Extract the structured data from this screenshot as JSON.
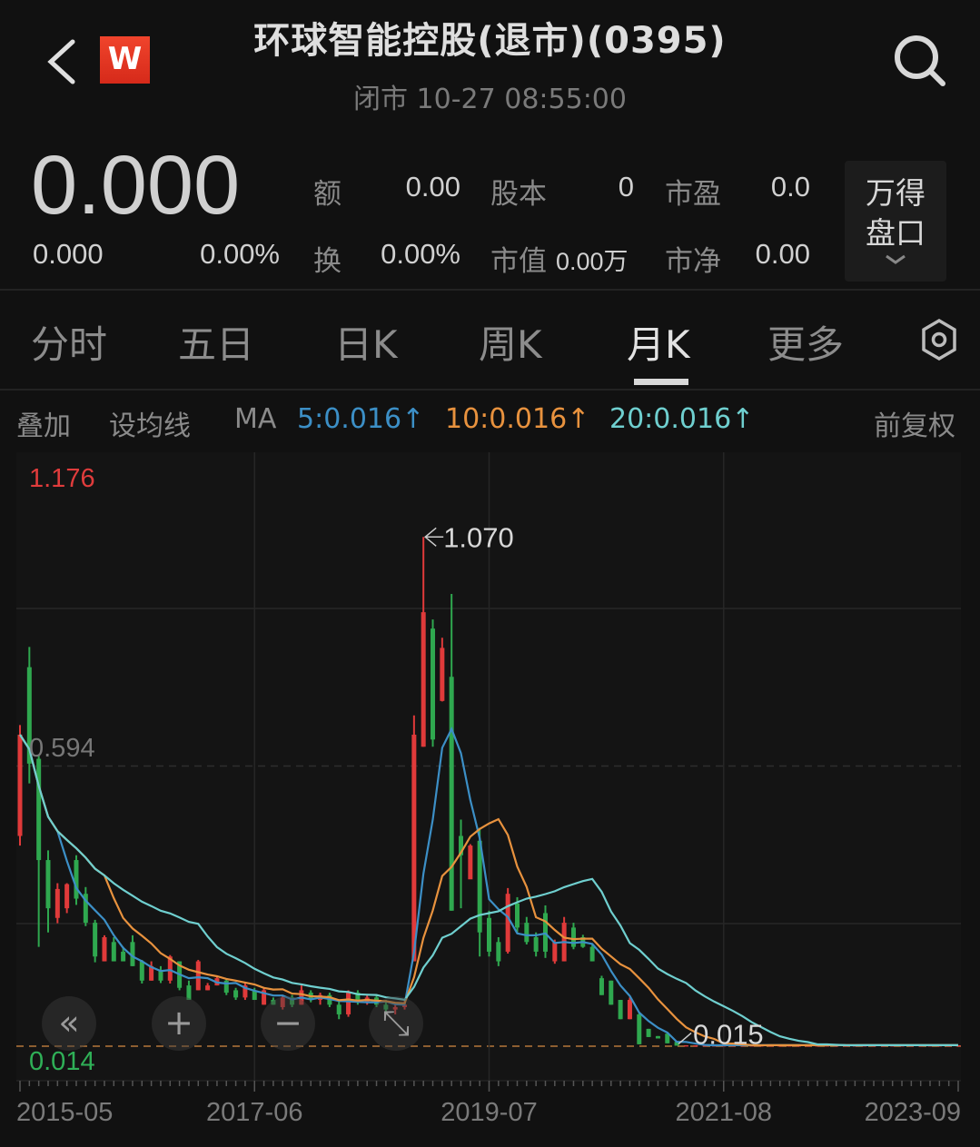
{
  "header": {
    "title": "环球智能控股(退市)(0395)",
    "subtitle": "闭市 10-27 08:55:00",
    "logo_text": "W",
    "icons": {
      "back": "chevron-left-icon",
      "search": "search-icon"
    }
  },
  "quote": {
    "price": "0.000",
    "change": "0.000",
    "change_pct": "0.00%",
    "stats": [
      {
        "label": "额",
        "value": "0.00"
      },
      {
        "label": "股本",
        "value": "0"
      },
      {
        "label": "市盈",
        "value": "0.0"
      },
      {
        "label": "换",
        "value": "0.00%"
      },
      {
        "label": "市值",
        "value": "0.00万"
      },
      {
        "label": "市净",
        "value": "0.00"
      }
    ],
    "panel_button": {
      "line1": "万得",
      "line2": "盘口",
      "icon": "chevron-down-icon"
    }
  },
  "tabs": [
    {
      "label": "分时",
      "active": false
    },
    {
      "label": "五日",
      "active": false
    },
    {
      "label": "日K",
      "active": false
    },
    {
      "label": "周K",
      "active": false
    },
    {
      "label": "月K",
      "active": true
    },
    {
      "label": "更多",
      "active": false
    }
  ],
  "settings_icon": "settings-hexagon-icon",
  "ma_bar": {
    "overlay": "叠加",
    "set_ma": "设均线",
    "ma": "MA",
    "ma5": "5:0.016↑",
    "ma10": "10:0.016↑",
    "ma20": "20:0.016↑",
    "adjust": "前复权"
  },
  "colors": {
    "up": "#e03a3a",
    "down": "#2fa84f",
    "ma5": "#3c8fc6",
    "ma10": "#e8923e",
    "ma20": "#6fcfcf"
  },
  "chart_controls": [
    {
      "name": "scroll-left",
      "icon": "double-chevron-left-icon",
      "glyph": "«"
    },
    {
      "name": "zoom-in",
      "icon": "plus-icon",
      "glyph": "+"
    },
    {
      "name": "zoom-out",
      "icon": "minus-icon",
      "glyph": "−"
    },
    {
      "name": "fullscreen",
      "icon": "expand-icon",
      "glyph": "⤡"
    }
  ],
  "chart_data": {
    "type": "candlestick",
    "interval": "monthly",
    "start": "2015-05",
    "ylim": [
      0.014,
      1.176
    ],
    "y_labels": {
      "max": "1.176",
      "mid": "0.594",
      "min": "0.014"
    },
    "annotations": {
      "high": "1.070",
      "low": "0.015"
    },
    "x_tick_labels": [
      "2015-05",
      "2017-06",
      "2019-07",
      "2021-08",
      "2023-09"
    ],
    "moving_averages": [
      5,
      10,
      20
    ],
    "ohlc": [
      [
        0.45,
        0.68,
        0.43,
        0.66
      ],
      [
        0.8,
        0.842,
        0.559,
        0.6
      ],
      [
        0.61,
        0.616,
        0.22,
        0.4
      ],
      [
        0.4,
        0.42,
        0.25,
        0.3
      ],
      [
        0.28,
        0.352,
        0.269,
        0.34
      ],
      [
        0.3,
        0.352,
        0.29,
        0.35
      ],
      [
        0.4,
        0.41,
        0.307,
        0.32
      ],
      [
        0.33,
        0.344,
        0.263,
        0.27
      ],
      [
        0.27,
        0.276,
        0.188,
        0.2
      ],
      [
        0.19,
        0.244,
        0.19,
        0.24
      ],
      [
        0.23,
        0.24,
        0.19,
        0.19
      ],
      [
        0.21,
        0.22,
        0.19,
        0.19
      ],
      [
        0.23,
        0.244,
        0.18,
        0.18
      ],
      [
        0.19,
        0.193,
        0.144,
        0.15
      ],
      [
        0.15,
        0.19,
        0.15,
        0.18
      ],
      [
        0.17,
        0.18,
        0.145,
        0.15
      ],
      [
        0.15,
        0.203,
        0.144,
        0.2
      ],
      [
        0.19,
        0.19,
        0.13,
        0.135
      ],
      [
        0.14,
        0.15,
        0.115,
        0.11
      ],
      [
        0.13,
        0.193,
        0.13,
        0.19
      ],
      [
        0.13,
        0.145,
        0.13,
        0.14
      ],
      [
        0.14,
        0.16,
        0.14,
        0.155
      ],
      [
        0.15,
        0.155,
        0.12,
        0.125
      ],
      [
        0.13,
        0.135,
        0.11,
        0.115
      ],
      [
        0.115,
        0.145,
        0.11,
        0.14
      ],
      [
        0.13,
        0.135,
        0.11,
        0.11
      ],
      [
        0.1,
        0.135,
        0.1,
        0.13
      ],
      [
        0.11,
        0.115,
        0.1,
        0.1
      ],
      [
        0.095,
        0.12,
        0.09,
        0.115
      ],
      [
        0.115,
        0.12,
        0.095,
        0.1
      ],
      [
        0.1,
        0.14,
        0.1,
        0.13
      ],
      [
        0.125,
        0.13,
        0.105,
        0.11
      ],
      [
        0.11,
        0.125,
        0.1,
        0.12
      ],
      [
        0.12,
        0.125,
        0.095,
        0.1
      ],
      [
        0.1,
        0.11,
        0.07,
        0.08
      ],
      [
        0.08,
        0.13,
        0.075,
        0.125
      ],
      [
        0.125,
        0.13,
        0.1,
        0.105
      ],
      [
        0.105,
        0.12,
        0.1,
        0.115
      ],
      [
        0.115,
        0.12,
        0.095,
        0.1
      ],
      [
        0.1,
        0.11,
        0.085,
        0.09
      ],
      [
        0.09,
        0.1,
        0.08,
        0.095
      ],
      [
        0.095,
        0.11,
        0.09,
        0.1
      ],
      [
        0.19,
        0.7,
        0.19,
        0.66
      ],
      [
        0.635,
        1.07,
        0.635,
        0.914
      ],
      [
        0.88,
        0.899,
        0.635,
        0.65
      ],
      [
        0.73,
        0.861,
        0.729,
        0.84
      ],
      [
        0.78,
        0.952,
        0.295,
        0.295
      ],
      [
        0.45,
        0.484,
        0.3,
        0.41
      ],
      [
        0.36,
        0.433,
        0.361,
        0.43
      ],
      [
        0.44,
        0.467,
        0.2,
        0.25
      ],
      [
        0.28,
        0.295,
        0.2,
        0.21
      ],
      [
        0.23,
        0.24,
        0.18,
        0.19
      ],
      [
        0.21,
        0.342,
        0.206,
        0.33
      ],
      [
        0.31,
        0.323,
        0.25,
        0.26
      ],
      [
        0.27,
        0.282,
        0.225,
        0.23
      ],
      [
        0.24,
        0.25,
        0.2,
        0.21
      ],
      [
        0.29,
        0.306,
        0.197,
        0.21
      ],
      [
        0.19,
        0.235,
        0.185,
        0.23
      ],
      [
        0.19,
        0.282,
        0.19,
        0.27
      ],
      [
        0.26,
        0.27,
        0.215,
        0.22
      ],
      [
        0.24,
        0.245,
        0.218,
        0.22
      ],
      [
        0.22,
        0.225,
        0.19,
        0.19
      ],
      [
        0.155,
        0.16,
        0.12,
        0.12
      ],
      [
        0.15,
        0.15,
        0.1,
        0.1
      ],
      [
        0.11,
        0.11,
        0.07,
        0.07
      ],
      [
        0.07,
        0.115,
        0.07,
        0.11
      ],
      [
        0.08,
        0.085,
        0.018,
        0.018
      ],
      [
        0.05,
        0.05,
        0.033,
        0.033
      ],
      [
        0.035,
        0.035,
        0.03,
        0.03
      ],
      [
        0.04,
        0.04,
        0.02,
        0.02
      ],
      [
        0.023,
        0.023,
        0.015,
        0.015
      ],
      [
        0.016,
        0.016,
        0.016,
        0.016
      ],
      [
        0.016,
        0.016,
        0.016,
        0.016
      ],
      [
        0.016,
        0.016,
        0.016,
        0.016
      ],
      [
        0.016,
        0.016,
        0.016,
        0.016
      ],
      [
        0.016,
        0.016,
        0.016,
        0.016
      ],
      [
        0.016,
        0.016,
        0.016,
        0.016
      ],
      [
        0.016,
        0.016,
        0.016,
        0.016
      ],
      [
        0.016,
        0.016,
        0.016,
        0.016
      ],
      [
        0.016,
        0.016,
        0.016,
        0.016
      ],
      [
        0.016,
        0.016,
        0.016,
        0.016
      ],
      [
        0.016,
        0.016,
        0.016,
        0.016
      ],
      [
        0.016,
        0.016,
        0.016,
        0.016
      ],
      [
        0.016,
        0.016,
        0.016,
        0.016
      ],
      [
        0.016,
        0.016,
        0.016,
        0.016
      ],
      [
        0.016,
        0.016,
        0.016,
        0.016
      ],
      [
        0.016,
        0.016,
        0.016,
        0.016
      ],
      [
        0.016,
        0.016,
        0.016,
        0.016
      ],
      [
        0.016,
        0.016,
        0.016,
        0.016
      ],
      [
        0.016,
        0.016,
        0.016,
        0.016
      ],
      [
        0.016,
        0.016,
        0.016,
        0.016
      ],
      [
        0.016,
        0.016,
        0.016,
        0.016
      ],
      [
        0.016,
        0.016,
        0.016,
        0.016
      ],
      [
        0.016,
        0.016,
        0.016,
        0.016
      ],
      [
        0.016,
        0.016,
        0.016,
        0.016
      ],
      [
        0.016,
        0.016,
        0.016,
        0.016
      ],
      [
        0.016,
        0.016,
        0.016,
        0.016
      ],
      [
        0.016,
        0.016,
        0.016,
        0.016
      ],
      [
        0.016,
        0.016,
        0.016,
        0.016
      ],
      [
        0.016,
        0.016,
        0.016,
        0.016
      ],
      [
        0.016,
        0.016,
        0.016,
        0.016
      ]
    ]
  }
}
